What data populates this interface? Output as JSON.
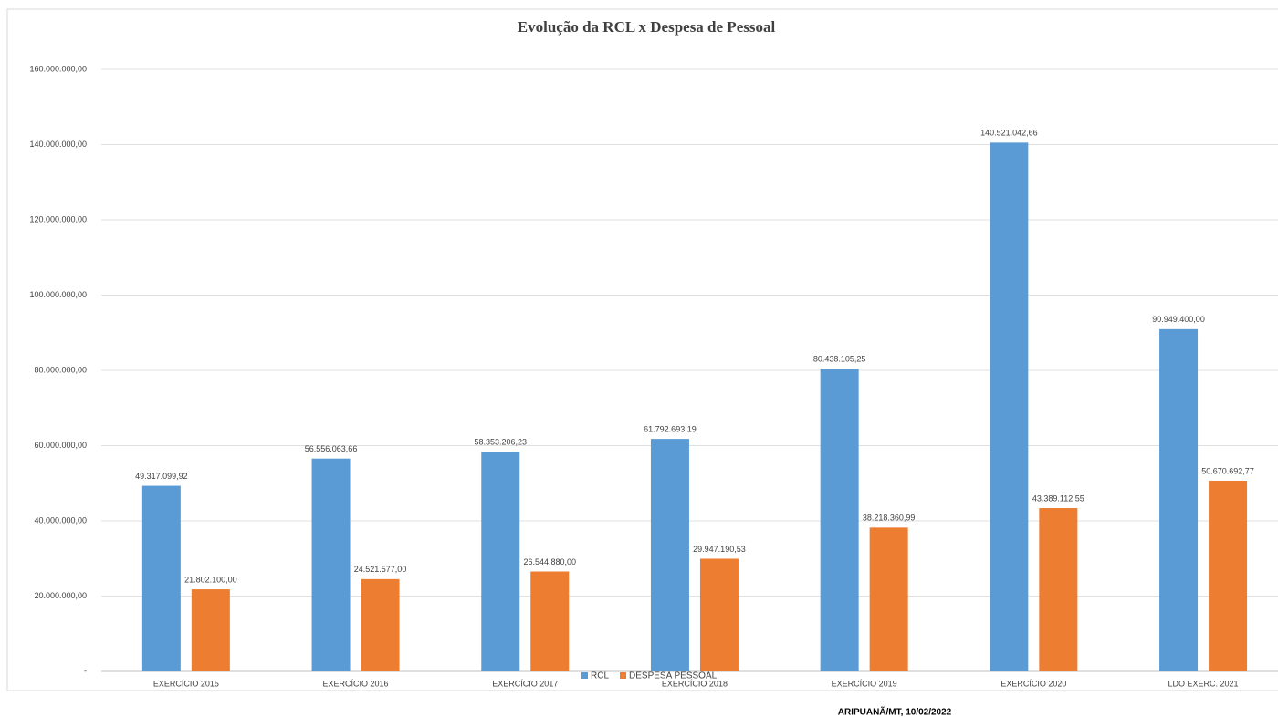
{
  "chart_data": {
    "type": "bar",
    "title": "Evolução da RCL x Despesa de Pessoal",
    "categories": [
      "EXERCÍCIO 2015",
      "EXERCÍCIO 2016",
      "EXERCÍCIO 2017",
      "EXERCÍCIO 2018",
      "EXERCÍCIO 2019",
      "EXERCÍCIO 2020",
      "LDO EXERC. 2021"
    ],
    "series": [
      {
        "name": "RCL",
        "color": "#5b9bd5",
        "values": [
          49317099.92,
          56556063.66,
          58353206.23,
          61792693.19,
          80438105.25,
          140521042.66,
          90949400.0
        ],
        "value_labels": [
          "49.317.099,92",
          "56.556.063,66",
          "58.353.206,23",
          "61.792.693,19",
          "80.438.105,25",
          "140.521.042,66",
          "90.949.400,00"
        ]
      },
      {
        "name": "DESPESA PESSOAL",
        "color": "#ed7d31",
        "values": [
          21802100.0,
          24521577.0,
          26544880.0,
          29947190.53,
          38218360.99,
          43389112.55,
          50670692.77
        ],
        "value_labels": [
          "21.802.100,00",
          "24.521.577,00",
          "26.544.880,00",
          "29.947.190,53",
          "38.218.360,99",
          "43.389.112,55",
          "50.670.692,77"
        ]
      }
    ],
    "ylim": [
      0,
      160000000
    ],
    "yticks": [
      {
        "value": 0,
        "label": "-"
      },
      {
        "value": 20000000,
        "label": "20.000.000,00"
      },
      {
        "value": 40000000,
        "label": "40.000.000,00"
      },
      {
        "value": 60000000,
        "label": "60.000.000,00"
      },
      {
        "value": 80000000,
        "label": "80.000.000,00"
      },
      {
        "value": 100000000,
        "label": "100.000.000,00"
      },
      {
        "value": 120000000,
        "label": "120.000.000,00"
      },
      {
        "value": 140000000,
        "label": "140.000.000,00"
      },
      {
        "value": 160000000,
        "label": "160.000.000,00"
      }
    ],
    "grid": true,
    "legend": "bottom"
  },
  "footer": "ARIPUANÃ/MT, 10/02/2022"
}
